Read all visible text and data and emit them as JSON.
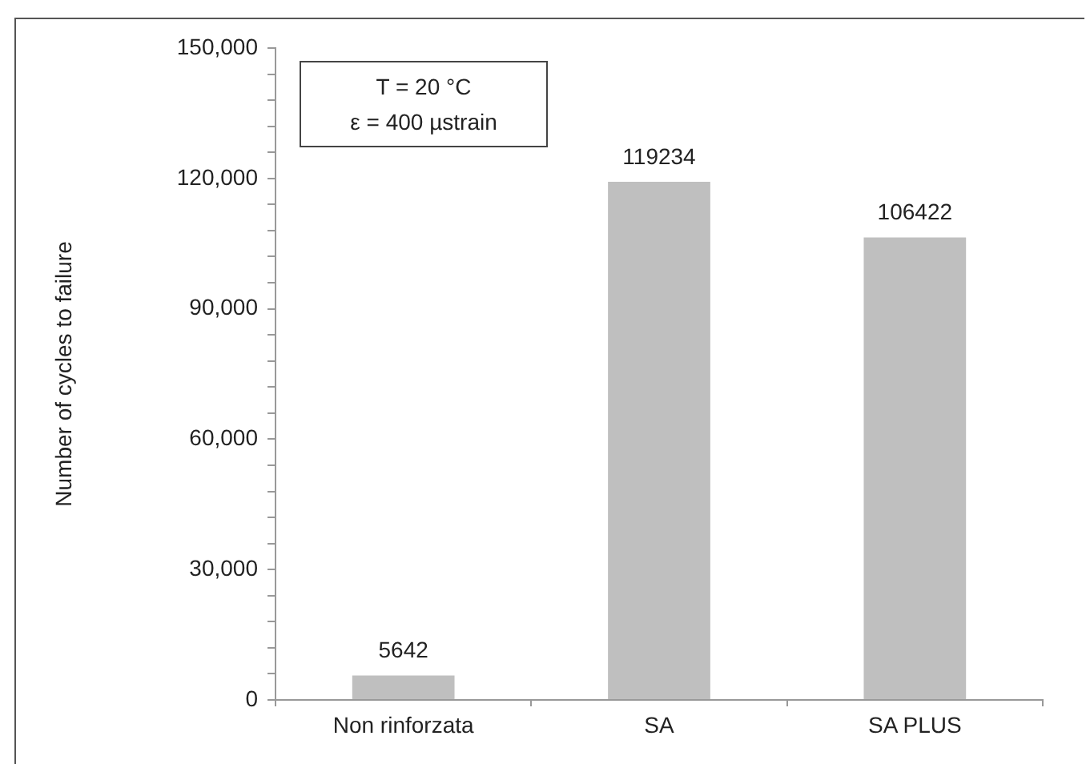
{
  "chart_data": {
    "type": "bar",
    "ylabel": "Number of cycles to failure",
    "categories": [
      "Non rinforzata",
      "SA",
      "SA PLUS"
    ],
    "values": [
      5642,
      119234,
      106422
    ],
    "color": "#bfbfbf",
    "ylim": [
      0,
      150000
    ],
    "yticks": [
      {
        "value": 0,
        "label": "0"
      },
      {
        "value": 6000,
        "label": null
      },
      {
        "value": 12000,
        "label": null
      },
      {
        "value": 18000,
        "label": null
      },
      {
        "value": 24000,
        "label": null
      },
      {
        "value": 30000,
        "label": "30,000"
      },
      {
        "value": 36000,
        "label": null
      },
      {
        "value": 42000,
        "label": null
      },
      {
        "value": 48000,
        "label": null
      },
      {
        "value": 54000,
        "label": null
      },
      {
        "value": 60000,
        "label": "60,000"
      },
      {
        "value": 66000,
        "label": null
      },
      {
        "value": 72000,
        "label": null
      },
      {
        "value": 78000,
        "label": null
      },
      {
        "value": 84000,
        "label": null
      },
      {
        "value": 90000,
        "label": "90,000"
      },
      {
        "value": 96000,
        "label": null
      },
      {
        "value": 102000,
        "label": null
      },
      {
        "value": 108000,
        "label": null
      },
      {
        "value": 114000,
        "label": null
      },
      {
        "value": 120000,
        "label": "120,000"
      },
      {
        "value": 126000,
        "label": null
      },
      {
        "value": 132000,
        "label": null
      },
      {
        "value": 138000,
        "label": null
      },
      {
        "value": 144000,
        "label": null
      },
      {
        "value": 150000,
        "label": "150,000"
      }
    ],
    "annotations": [
      "T = 20 °C",
      "ε = 400 µstrain"
    ],
    "data_labels": true,
    "grid": false,
    "legend": false
  }
}
